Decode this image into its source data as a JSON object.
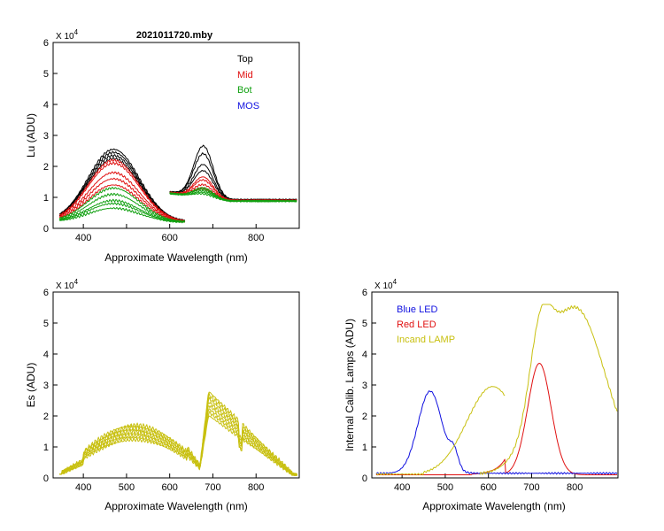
{
  "chart_data": [
    {
      "id": "lu",
      "type": "line",
      "title": "2021011720.mby",
      "xlabel": "Approximate Wavelength (nm)",
      "ylabel": "Lu (ADU)",
      "multiplier": "X 10",
      "multiplier_exp": "4",
      "xlim": [
        330,
        900
      ],
      "ylim": [
        0,
        6
      ],
      "xticks": [
        400,
        500,
        600,
        700,
        800
      ],
      "xtick_labels": [
        "400",
        "",
        "600",
        "",
        "800"
      ],
      "yticks": [
        0,
        1,
        2,
        3,
        4,
        5,
        6
      ],
      "ytick_labels": [
        "0",
        "1",
        "2",
        "3",
        "4",
        "5",
        "6"
      ],
      "legend": [
        {
          "label": "Top",
          "color": "#000000"
        },
        {
          "label": "Mid",
          "color": "#e01010"
        },
        {
          "label": "Bot",
          "color": "#10a010"
        },
        {
          "label": "MOS",
          "color": "#1010e0"
        }
      ],
      "series": [
        {
          "name": "Top",
          "color": "#000000",
          "peaks": [
            2.55,
            2.45,
            2.35,
            2.25
          ],
          "red_peaks": [
            2.55,
            2.3,
            1.95,
            1.75
          ],
          "baseline": 0.92
        },
        {
          "name": "Mid",
          "color": "#e01010",
          "peaks": [
            2.2,
            2.1,
            1.8,
            1.6,
            1.4
          ],
          "red_peaks": [
            1.55,
            1.45,
            1.3,
            1.2,
            1.15
          ],
          "baseline": 0.9
        },
        {
          "name": "Bot",
          "color": "#10a010",
          "peaks": [
            1.3,
            1.1,
            0.9,
            0.8,
            0.65
          ],
          "red_peaks": [
            1.2,
            1.15,
            1.1,
            1.05,
            1.0
          ],
          "baseline": 0.88
        }
      ]
    },
    {
      "id": "es",
      "type": "line",
      "title": "",
      "xlabel": "Approximate Wavelength (nm)",
      "ylabel": "Es  (ADU)",
      "multiplier": "X 10",
      "multiplier_exp": "4",
      "xlim": [
        330,
        900
      ],
      "ylim": [
        0,
        6
      ],
      "xticks": [
        400,
        500,
        600,
        700,
        800
      ],
      "xtick_labels": [
        "400",
        "500",
        "600",
        "700",
        "800"
      ],
      "yticks": [
        0,
        1,
        2,
        3,
        4,
        5,
        6
      ],
      "ytick_labels": [
        "0",
        "1",
        "2",
        "3",
        "4",
        "5",
        "6"
      ],
      "series": [
        {
          "name": "Es",
          "color": "#c8c010",
          "scales": [
            1.0,
            0.96,
            0.92,
            0.88,
            0.84,
            0.8,
            0.76,
            0.72
          ]
        }
      ]
    },
    {
      "id": "lamps",
      "type": "line",
      "title": "",
      "xlabel": "Approximate Wavelength (nm)",
      "ylabel": "Internal Calib. Lamps  (ADU)",
      "multiplier": "X 10",
      "multiplier_exp": "4",
      "xlim": [
        330,
        900
      ],
      "ylim": [
        0,
        6
      ],
      "xticks": [
        400,
        500,
        600,
        700,
        800
      ],
      "xtick_labels": [
        "400",
        "500",
        "600",
        "700",
        "800"
      ],
      "yticks": [
        0,
        1,
        2,
        3,
        4,
        5,
        6
      ],
      "ytick_labels": [
        "0",
        "1",
        "2",
        "3",
        "4",
        "5",
        "6"
      ],
      "legend": [
        {
          "label": "Blue LED",
          "color": "#1010e0"
        },
        {
          "label": "Red LED",
          "color": "#e01010"
        },
        {
          "label": "Incand LAMP",
          "color": "#c8c010"
        }
      ],
      "series": [
        {
          "name": "Blue LED",
          "color": "#1010e0",
          "peak_nm": 465,
          "peak": 2.8
        },
        {
          "name": "Red LED",
          "color": "#e01010",
          "peak_nm": 718,
          "peak": 3.7
        },
        {
          "name": "Incand LAMP",
          "color": "#c8c010",
          "peak_nm": 800,
          "peak": 5.5
        }
      ]
    }
  ]
}
